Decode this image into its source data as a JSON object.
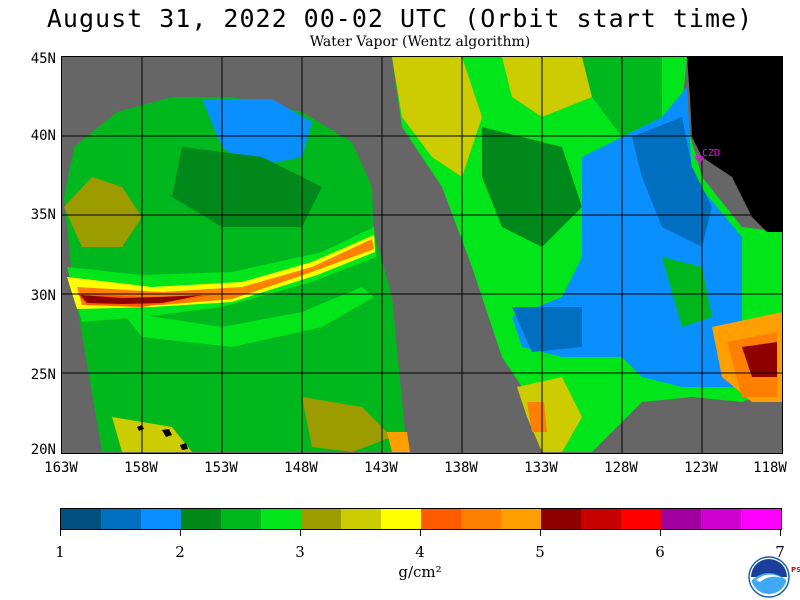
{
  "header": {
    "title": "August 31, 2022  00-02 UTC  (Orbit start time)",
    "subtitle": "Water Vapor (Wentz algorithm)"
  },
  "map": {
    "lat_labels": [
      "45N",
      "40N",
      "35N",
      "30N",
      "25N",
      "20N"
    ],
    "lon_labels": [
      "163W",
      "158W",
      "153W",
      "148W",
      "143W",
      "138W",
      "133W",
      "128W",
      "123W",
      "118W"
    ],
    "station_label": "CZD",
    "colors": {
      "no_data": "#666666",
      "land": "#000000",
      "grid": "#000000",
      "station": "#ff00ff"
    }
  },
  "colorbar": {
    "colors": [
      "#00507f",
      "#006fbf",
      "#0a8fff",
      "#00891a",
      "#00b81d",
      "#00e61a",
      "#9c9c00",
      "#cccc00",
      "#ffff00",
      "#ff5a00",
      "#ff7f00",
      "#ffa000",
      "#8f0000",
      "#c80000",
      "#ff0000",
      "#9f009f",
      "#d000d0",
      "#ff00ff"
    ],
    "tick_labels": [
      "1",
      "2",
      "3",
      "4",
      "5",
      "6",
      "7"
    ],
    "units": "g/cm²"
  },
  "logo": {
    "name": "NOAA",
    "side_text": "PSL"
  }
}
